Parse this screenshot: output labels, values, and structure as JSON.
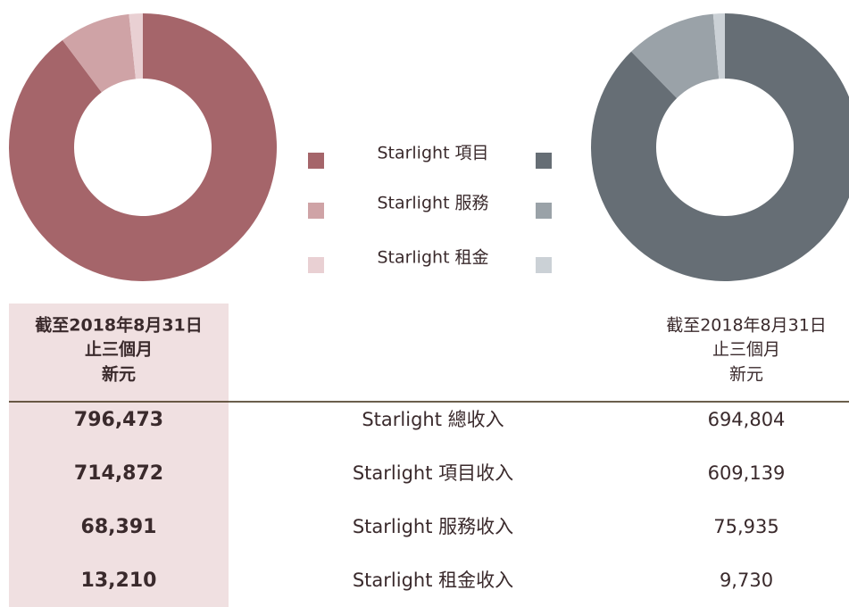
{
  "legend": [
    "Starlight 項目",
    "Starlight 服務",
    "Starlight 租金"
  ],
  "colors": {
    "left": [
      "#a5656a",
      "#cfa3a6",
      "#e9d0d3"
    ],
    "right": [
      "#666e75",
      "#9aa2a8",
      "#cbd1d6"
    ]
  },
  "table": {
    "left_header": [
      "截至2018年8月31日",
      "止三個月",
      "新元"
    ],
    "right_header": [
      "截至2018年8月31日",
      "止三個月",
      "新元"
    ],
    "rows": [
      {
        "left": "796,473",
        "label": "Starlight 總收入",
        "right": "694,804"
      },
      {
        "left": "714,872",
        "label": "Starlight 項目收入",
        "right": "609,139"
      },
      {
        "left": "68,391",
        "label": "Starlight 服務收入",
        "right": "75,935"
      },
      {
        "left": "13,210",
        "label": "Starlight 租金收入",
        "right": "9,730"
      }
    ]
  }
}
